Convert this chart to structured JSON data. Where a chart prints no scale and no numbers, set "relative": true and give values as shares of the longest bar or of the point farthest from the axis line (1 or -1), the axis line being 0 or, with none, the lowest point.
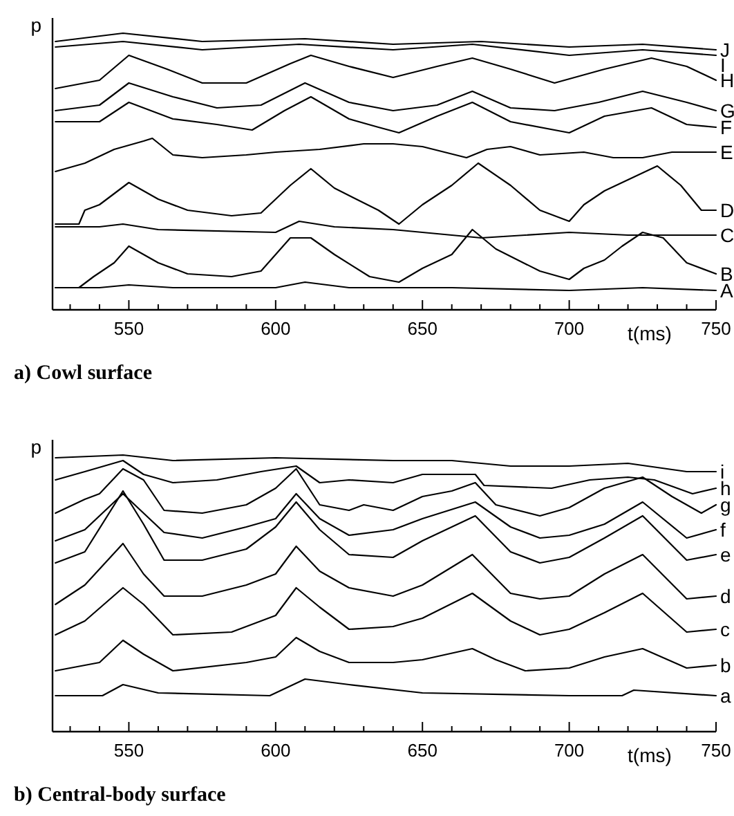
{
  "chart_data": [
    {
      "type": "line",
      "title": "a) Cowl surface",
      "xlabel": "t(ms)",
      "ylabel": "p",
      "relative": true,
      "xlim": [
        524,
        750
      ],
      "xticks": [
        {
          "value": 530,
          "label": null
        },
        {
          "value": 540,
          "label": null
        },
        550,
        {
          "value": 560,
          "label": null
        },
        {
          "value": 570,
          "label": null
        },
        {
          "value": 580,
          "label": null
        },
        {
          "value": 590,
          "label": null
        },
        600,
        {
          "value": 610,
          "label": null
        },
        {
          "value": 620,
          "label": null
        },
        {
          "value": 630,
          "label": null
        },
        {
          "value": 640,
          "label": null
        },
        650,
        {
          "value": 660,
          "label": null
        },
        {
          "value": 670,
          "label": null
        },
        {
          "value": 680,
          "label": null
        },
        {
          "value": 690,
          "label": null
        },
        700,
        {
          "value": 710,
          "label": null
        },
        {
          "value": 720,
          "label": null
        },
        {
          "value": 730,
          "label": null
        },
        {
          "value": 740,
          "label": null
        },
        750
      ],
      "grid": false,
      "marker": "none",
      "line_style": "solid",
      "series": [
        {
          "name": "J",
          "color": "#000000",
          "x": [
            525,
            548,
            575,
            610,
            640,
            670,
            700,
            725,
            750
          ],
          "values": [
            0.97,
            1.0,
            0.97,
            0.98,
            0.96,
            0.97,
            0.95,
            0.96,
            0.94
          ]
        },
        {
          "name": "I",
          "color": "#000000",
          "x": [
            525,
            548,
            575,
            608,
            640,
            667,
            700,
            725,
            750
          ],
          "values": [
            0.95,
            0.97,
            0.94,
            0.96,
            0.94,
            0.96,
            0.92,
            0.94,
            0.92
          ]
        },
        {
          "name": "H",
          "color": "#000000",
          "x": [
            525,
            540,
            550,
            563,
            575,
            590,
            605,
            612,
            625,
            640,
            655,
            667,
            680,
            695,
            712,
            728,
            740,
            750
          ],
          "values": [
            0.8,
            0.83,
            0.92,
            0.87,
            0.82,
            0.82,
            0.89,
            0.92,
            0.88,
            0.84,
            0.88,
            0.91,
            0.87,
            0.82,
            0.87,
            0.91,
            0.88,
            0.83
          ]
        },
        {
          "name": "G",
          "color": "#000000",
          "x": [
            525,
            540,
            550,
            565,
            580,
            595,
            610,
            625,
            640,
            655,
            667,
            680,
            695,
            710,
            725,
            740,
            750
          ],
          "values": [
            0.72,
            0.74,
            0.82,
            0.77,
            0.73,
            0.74,
            0.82,
            0.75,
            0.72,
            0.74,
            0.79,
            0.73,
            0.72,
            0.75,
            0.79,
            0.75,
            0.72
          ]
        },
        {
          "name": "F",
          "color": "#000000",
          "x": [
            525,
            540,
            550,
            565,
            580,
            592,
            603,
            612,
            625,
            635,
            642,
            655,
            667,
            680,
            700,
            712,
            728,
            740,
            750
          ],
          "values": [
            0.68,
            0.68,
            0.75,
            0.69,
            0.67,
            0.65,
            0.72,
            0.77,
            0.69,
            0.66,
            0.64,
            0.7,
            0.75,
            0.68,
            0.64,
            0.7,
            0.73,
            0.67,
            0.66
          ]
        },
        {
          "name": "E",
          "color": "#000000",
          "x": [
            525,
            535,
            545,
            555,
            558,
            565,
            575,
            590,
            600,
            615,
            630,
            640,
            650,
            665,
            672,
            680,
            690,
            705,
            715,
            725,
            735,
            750
          ],
          "values": [
            0.5,
            0.53,
            0.58,
            0.61,
            0.62,
            0.56,
            0.55,
            0.56,
            0.57,
            0.58,
            0.6,
            0.6,
            0.59,
            0.55,
            0.58,
            0.59,
            0.56,
            0.57,
            0.55,
            0.55,
            0.57,
            0.57
          ]
        },
        {
          "name": "D",
          "color": "#000000",
          "x": [
            525,
            533,
            535,
            540,
            550,
            560,
            570,
            585,
            595,
            605,
            612,
            620,
            635,
            642,
            650,
            660,
            669,
            680,
            690,
            700,
            705,
            712,
            720,
            730,
            738,
            745,
            750
          ],
          "values": [
            0.31,
            0.31,
            0.36,
            0.38,
            0.46,
            0.4,
            0.36,
            0.34,
            0.35,
            0.45,
            0.51,
            0.44,
            0.36,
            0.31,
            0.38,
            0.45,
            0.53,
            0.45,
            0.36,
            0.32,
            0.38,
            0.43,
            0.47,
            0.52,
            0.45,
            0.36,
            0.36
          ]
        },
        {
          "name": "C",
          "color": "#000000",
          "x": [
            525,
            540,
            548,
            560,
            600,
            608,
            620,
            640,
            660,
            670,
            700,
            720,
            750
          ],
          "values": [
            0.3,
            0.3,
            0.31,
            0.29,
            0.28,
            0.32,
            0.3,
            0.29,
            0.27,
            0.26,
            0.28,
            0.27,
            0.27
          ]
        },
        {
          "name": "B",
          "color": "#000000",
          "x": [
            525,
            533,
            538,
            545,
            550,
            560,
            570,
            585,
            595,
            605,
            612,
            620,
            632,
            642,
            650,
            660,
            667,
            675,
            690,
            700,
            705,
            712,
            718,
            725,
            732,
            740,
            750
          ],
          "values": [
            0.08,
            0.08,
            0.12,
            0.17,
            0.23,
            0.17,
            0.13,
            0.12,
            0.14,
            0.26,
            0.26,
            0.2,
            0.12,
            0.1,
            0.15,
            0.2,
            0.29,
            0.22,
            0.14,
            0.11,
            0.15,
            0.18,
            0.23,
            0.28,
            0.26,
            0.17,
            0.13
          ]
        },
        {
          "name": "A",
          "color": "#000000",
          "x": [
            525,
            540,
            550,
            565,
            600,
            610,
            625,
            660,
            700,
            725,
            750
          ],
          "values": [
            0.08,
            0.08,
            0.09,
            0.08,
            0.08,
            0.1,
            0.08,
            0.08,
            0.07,
            0.08,
            0.07
          ]
        }
      ]
    },
    {
      "type": "line",
      "title": "b) Central-body surface",
      "xlabel": "t(ms)",
      "ylabel": "p",
      "relative": true,
      "xlim": [
        524,
        750
      ],
      "xticks": [
        {
          "value": 530,
          "label": null
        },
        {
          "value": 540,
          "label": null
        },
        550,
        {
          "value": 560,
          "label": null
        },
        {
          "value": 570,
          "label": null
        },
        {
          "value": 580,
          "label": null
        },
        {
          "value": 590,
          "label": null
        },
        600,
        {
          "value": 610,
          "label": null
        },
        {
          "value": 620,
          "label": null
        },
        {
          "value": 630,
          "label": null
        },
        {
          "value": 640,
          "label": null
        },
        650,
        {
          "value": 660,
          "label": null
        },
        {
          "value": 670,
          "label": null
        },
        {
          "value": 680,
          "label": null
        },
        {
          "value": 690,
          "label": null
        },
        700,
        {
          "value": 710,
          "label": null
        },
        {
          "value": 720,
          "label": null
        },
        {
          "value": 730,
          "label": null
        },
        {
          "value": 740,
          "label": null
        },
        750
      ],
      "grid": false,
      "marker": "none",
      "line_style": "solid",
      "series": [
        {
          "name": "i",
          "color": "#000000",
          "x": [
            525,
            548,
            565,
            600,
            640,
            660,
            680,
            700,
            720,
            740,
            750
          ],
          "values": [
            0.99,
            1.0,
            0.98,
            0.99,
            0.98,
            0.98,
            0.96,
            0.96,
            0.97,
            0.94,
            0.94
          ]
        },
        {
          "name": "h",
          "color": "#000000",
          "x": [
            525,
            535,
            548,
            555,
            565,
            580,
            595,
            607,
            615,
            625,
            640,
            650,
            668,
            671,
            694,
            707,
            720,
            729,
            742,
            750
          ],
          "values": [
            0.91,
            0.94,
            0.98,
            0.93,
            0.9,
            0.91,
            0.94,
            0.96,
            0.9,
            0.91,
            0.9,
            0.93,
            0.93,
            0.89,
            0.88,
            0.91,
            0.92,
            0.91,
            0.86,
            0.88
          ]
        },
        {
          "name": "g",
          "color": "#000000",
          "x": [
            525,
            535,
            540,
            548,
            555,
            562,
            575,
            590,
            600,
            607,
            615,
            625,
            630,
            640,
            650,
            660,
            668,
            675,
            690,
            700,
            712,
            725,
            735,
            745,
            750
          ],
          "values": [
            0.79,
            0.84,
            0.86,
            0.95,
            0.91,
            0.8,
            0.79,
            0.82,
            0.88,
            0.95,
            0.82,
            0.8,
            0.82,
            0.8,
            0.85,
            0.87,
            0.9,
            0.82,
            0.78,
            0.81,
            0.88,
            0.92,
            0.85,
            0.79,
            0.82
          ]
        },
        {
          "name": "f",
          "color": "#000000",
          "x": [
            525,
            535,
            548,
            555,
            562,
            575,
            590,
            600,
            607,
            615,
            625,
            640,
            650,
            668,
            680,
            690,
            700,
            712,
            725,
            740,
            750
          ],
          "values": [
            0.69,
            0.73,
            0.86,
            0.79,
            0.72,
            0.7,
            0.74,
            0.77,
            0.86,
            0.77,
            0.71,
            0.73,
            0.77,
            0.83,
            0.74,
            0.7,
            0.71,
            0.75,
            0.83,
            0.7,
            0.73
          ]
        },
        {
          "name": "e",
          "color": "#000000",
          "x": [
            525,
            535,
            548,
            555,
            562,
            575,
            590,
            600,
            607,
            615,
            625,
            640,
            650,
            668,
            680,
            690,
            700,
            712,
            725,
            740,
            750
          ],
          "values": [
            0.61,
            0.65,
            0.87,
            0.75,
            0.62,
            0.62,
            0.66,
            0.74,
            0.83,
            0.73,
            0.64,
            0.63,
            0.69,
            0.78,
            0.65,
            0.61,
            0.63,
            0.7,
            0.78,
            0.62,
            0.64
          ]
        },
        {
          "name": "d",
          "color": "#000000",
          "x": [
            525,
            535,
            548,
            555,
            562,
            575,
            590,
            600,
            607,
            615,
            625,
            640,
            650,
            667,
            680,
            690,
            700,
            712,
            725,
            740,
            750
          ],
          "values": [
            0.46,
            0.53,
            0.68,
            0.57,
            0.49,
            0.49,
            0.53,
            0.57,
            0.67,
            0.58,
            0.52,
            0.49,
            0.53,
            0.64,
            0.5,
            0.48,
            0.49,
            0.57,
            0.64,
            0.48,
            0.49
          ]
        },
        {
          "name": "c",
          "color": "#000000",
          "x": [
            525,
            535,
            548,
            555,
            565,
            585,
            600,
            607,
            615,
            625,
            640,
            650,
            667,
            680,
            690,
            700,
            712,
            725,
            740,
            750
          ],
          "values": [
            0.35,
            0.4,
            0.52,
            0.46,
            0.35,
            0.36,
            0.42,
            0.52,
            0.45,
            0.37,
            0.38,
            0.41,
            0.5,
            0.4,
            0.35,
            0.37,
            0.43,
            0.5,
            0.36,
            0.37
          ]
        },
        {
          "name": "b",
          "color": "#000000",
          "x": [
            525,
            540,
            548,
            555,
            565,
            590,
            600,
            607,
            615,
            625,
            640,
            650,
            667,
            675,
            685,
            700,
            712,
            725,
            740,
            750
          ],
          "values": [
            0.22,
            0.25,
            0.33,
            0.28,
            0.22,
            0.25,
            0.27,
            0.34,
            0.29,
            0.25,
            0.25,
            0.26,
            0.3,
            0.26,
            0.22,
            0.23,
            0.27,
            0.3,
            0.23,
            0.24
          ]
        },
        {
          "name": "a",
          "color": "#000000",
          "x": [
            525,
            541,
            548,
            560,
            598,
            610,
            625,
            650,
            700,
            718,
            722,
            750
          ],
          "values": [
            0.13,
            0.13,
            0.17,
            0.14,
            0.13,
            0.19,
            0.17,
            0.14,
            0.13,
            0.13,
            0.15,
            0.13
          ]
        }
      ]
    }
  ]
}
